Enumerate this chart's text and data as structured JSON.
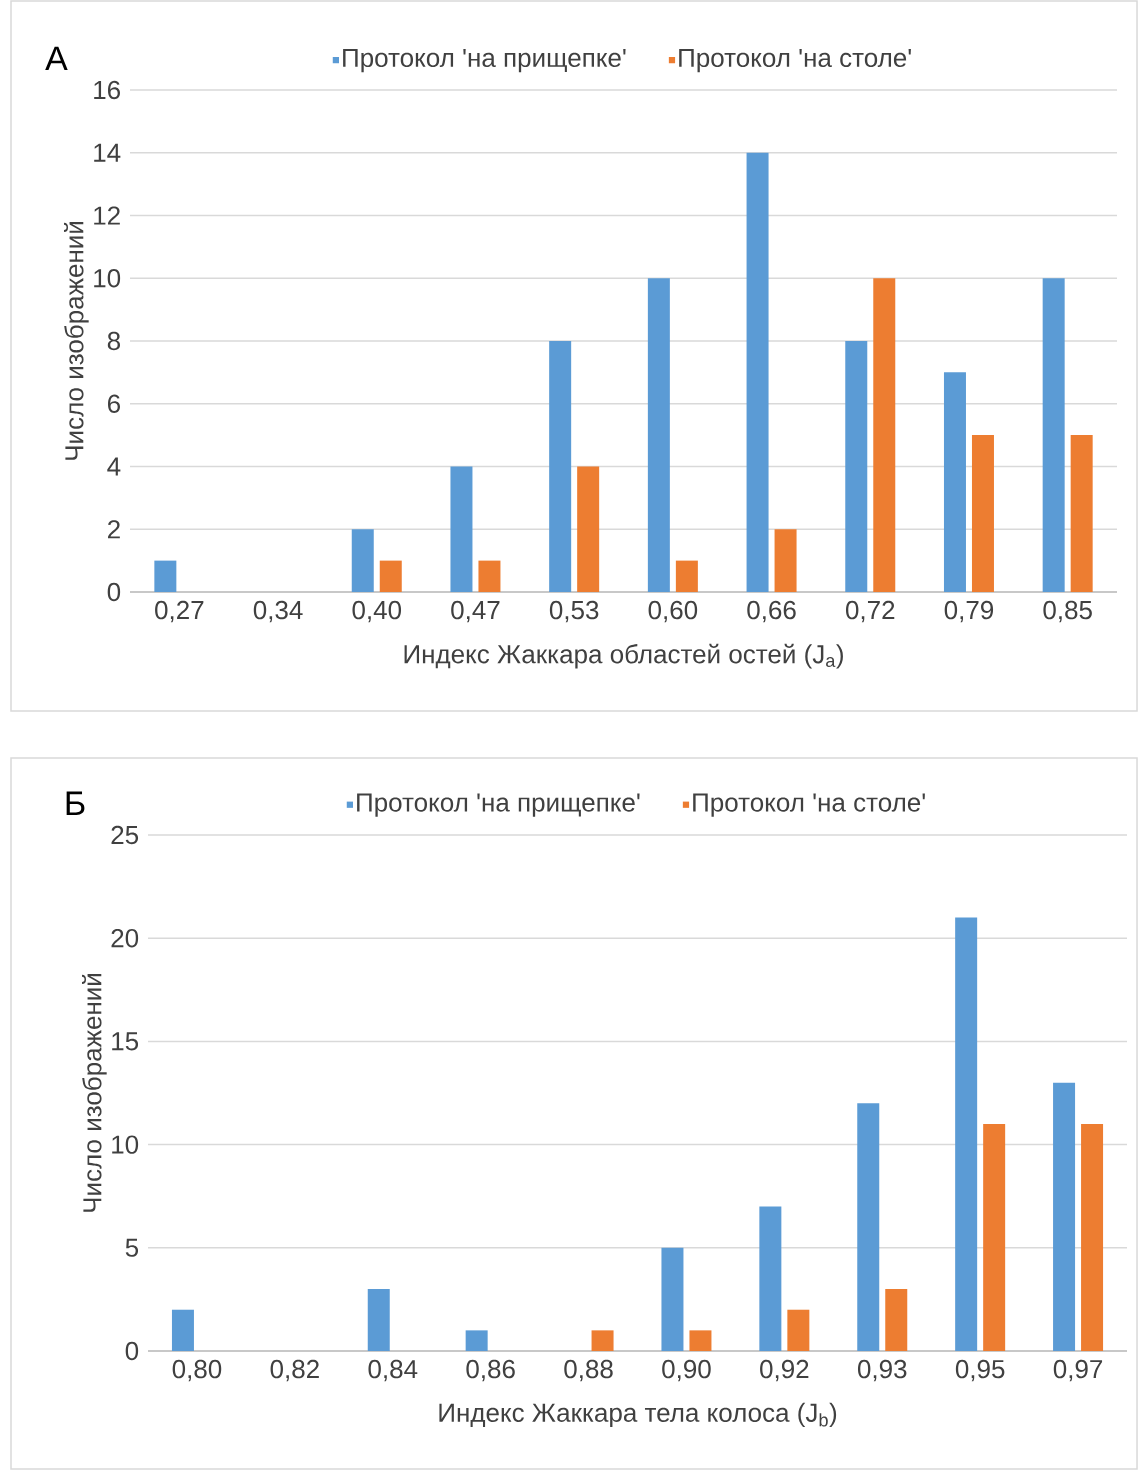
{
  "chart_data": [
    {
      "type": "bar",
      "title": "А",
      "xlabel": "Индекс Жаккара областей остей (J$_{a}$)",
      "ylabel": "Число изображений",
      "categories": [
        "0,27",
        "0,34",
        "0,40",
        "0,47",
        "0,53",
        "0,60",
        "0,66",
        "0,72",
        "0,79",
        "0,85"
      ],
      "series": [
        {
          "name": "Протокол 'на прищепке'",
          "color": "#5b9bd5",
          "values": [
            1,
            0,
            2,
            4,
            8,
            10,
            14,
            8,
            7,
            10
          ]
        },
        {
          "name": "Протокол 'на столе'",
          "color": "#ed7d31",
          "values": [
            0,
            0,
            1,
            1,
            4,
            1,
            2,
            10,
            5,
            5
          ]
        }
      ],
      "ylim": [
        0,
        16
      ],
      "yticks": [
        0,
        2,
        4,
        6,
        8,
        10,
        12,
        14,
        16
      ],
      "grid": "y",
      "legend": "top"
    },
    {
      "type": "bar",
      "title": "Б",
      "xlabel": "Индекс Жаккара тела колоса (J$_{b}$)",
      "ylabel": "Число изображений",
      "categories": [
        "0,80",
        "0,82",
        "0,84",
        "0,86",
        "0,88",
        "0,90",
        "0,92",
        "0,93",
        "0,95",
        "0,97"
      ],
      "series": [
        {
          "name": "Протокол 'на прищепке'",
          "color": "#5b9bd5",
          "values": [
            2,
            0,
            3,
            1,
            0,
            5,
            7,
            12,
            21,
            13
          ]
        },
        {
          "name": "Протокол 'на столе'",
          "color": "#ed7d31",
          "values": [
            0,
            0,
            0,
            0,
            1,
            1,
            2,
            3,
            11,
            11
          ]
        }
      ],
      "ylim": [
        0,
        25
      ],
      "yticks": [
        0,
        5,
        10,
        15,
        20,
        25
      ],
      "grid": "y",
      "legend": "top"
    }
  ]
}
